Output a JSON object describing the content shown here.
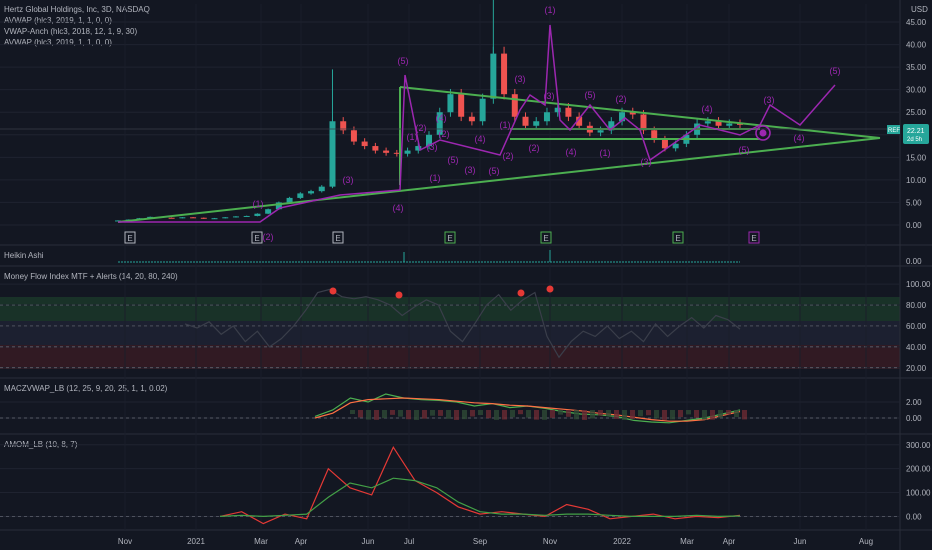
{
  "header": {
    "title": "Hertz Global Holdings, Inc, 3D, NASDAQ",
    "indicators": [
      "AVWAP (hlc3, 2019, 1, 1, 0, 0)",
      "VWAP-Anch (hlc3, 2018, 12, 1, 9, 30)",
      "AVWAP (hlc3, 2019, 1, 1, 0, 0)"
    ],
    "currency": "USD",
    "price_tag": "22.21",
    "price_sub": "2d 5h",
    "price_label_left": "REF"
  },
  "pane_titles": [
    "Heikin Ashi",
    "Money Flow Index MTF + Alerts (14, 20, 80, 240)",
    "MACZVWAP_LB (12, 25, 9, 20, 25, 1, 1, 0.02)",
    "AMOM_LB (10, 8, 7)"
  ],
  "x_axis_labels": [
    "Nov",
    "2021",
    "Mar",
    "Apr",
    "Jun",
    "Jul",
    "Sep",
    "Nov",
    "2022",
    "Mar",
    "Apr",
    "Jun",
    "Aug"
  ],
  "events": [
    "E",
    "E",
    "E",
    "E",
    "E",
    "E",
    "E"
  ],
  "wave_labels": [
    "(1)",
    "(2)",
    "(3)",
    "(4)",
    "(5)",
    "(1)",
    "(2)",
    "(1)",
    "(2)",
    "(3)",
    "(4)",
    "(5)",
    "(3)",
    "(1)",
    "(2)",
    "(3)",
    "(4)",
    "(5)",
    "(1)",
    "(2)",
    "(3)",
    "(4)",
    "(5)",
    "(3)",
    "(4)",
    "(5)",
    "(1)",
    "(2)",
    "(3)",
    "(4)",
    "(5)"
  ],
  "wave_target_icon": "target-circle-icon",
  "chart_data": [
    {
      "type": "line",
      "title": "Hertz Global Holdings, Inc, 3D, NASDAQ",
      "ylabel": "USD",
      "y_ticks": [
        "0.00",
        "5.00",
        "10.00",
        "15.00",
        "20.00",
        "25.00",
        "30.00",
        "35.00",
        "40.00",
        "45.00"
      ],
      "ylim": [
        -2,
        49
      ],
      "series": [
        {
          "values": [
            1.0,
            1.2,
            1.5,
            1.8,
            1.6,
            1.5,
            1.7,
            1.6,
            1.4,
            1.5,
            1.7,
            1.9,
            2.0,
            2.5,
            3.5,
            5.0,
            6.0,
            7.0,
            7.5,
            8.5,
            23.0,
            21.0,
            18.5,
            17.5,
            16.5,
            16.0,
            15.8,
            16.5,
            17.5,
            20.0,
            25.0,
            29.0,
            24.0,
            23.0,
            28.0,
            38.0,
            29.0,
            24.0,
            22.0,
            23.0,
            25.0,
            26.0,
            24.0,
            22.0,
            20.5,
            21.0,
            23.0,
            25.0,
            24.5,
            21.0,
            19.0,
            17.0,
            18.0,
            20.0,
            22.5,
            23.0,
            22.0,
            22.5,
            22.2
          ]
        }
      ]
    },
    {
      "type": "line",
      "title": "Money Flow Index MTF + Alerts (14, 20, 80, 240)",
      "y_ticks": [
        "20.00",
        "40.00",
        "60.00",
        "80.00",
        "100.00"
      ],
      "ylim": [
        15,
        103
      ],
      "series": [
        {
          "values": [
            62,
            58,
            64,
            52,
            60,
            45,
            55,
            40,
            48,
            60,
            75,
            92,
            95,
            88,
            86,
            88,
            85,
            80,
            70,
            78,
            85,
            80,
            55,
            45,
            62,
            80,
            90,
            75,
            85,
            92,
            50,
            30,
            45,
            55,
            50,
            60,
            48,
            55,
            45,
            62,
            50,
            60,
            68,
            58,
            70,
            66,
            57
          ]
        }
      ]
    },
    {
      "type": "line",
      "title": "MACZVWAP_LB (12, 25, 9, 20, 25, 1, 1, 0.02)",
      "y_ticks": [
        "0.00",
        "2.00"
      ],
      "ylim": [
        -1.5,
        3.5
      ],
      "series": [
        {
          "values": [
            0.2,
            1.0,
            2.5,
            2.0,
            3.0,
            2.5,
            2.3,
            2.2,
            2.0,
            1.5,
            1.8,
            1.3,
            1.5,
            1.2,
            0.8,
            0.5,
            0.4,
            0.2,
            -0.3,
            -0.5,
            -0.6,
            -0.3,
            0.0,
            0.5,
            1.0
          ]
        },
        {
          "values": [
            0.0,
            0.6,
            1.9,
            2.3,
            2.4,
            2.5,
            2.4,
            2.3,
            2.1,
            1.9,
            1.8,
            1.6,
            1.5,
            1.3,
            1.1,
            0.9,
            0.6,
            0.4,
            0.1,
            -0.2,
            -0.4,
            -0.4,
            -0.2,
            0.3,
            0.8
          ]
        }
      ]
    },
    {
      "type": "line",
      "title": "AMOM_LB (10, 8, 7)",
      "y_ticks": [
        "0.00",
        "100.00",
        "200.00",
        "300.00"
      ],
      "ylim": [
        -40,
        320
      ],
      "series": [
        {
          "values": [
            0,
            20,
            -30,
            10,
            -10,
            200,
            120,
            90,
            290,
            150,
            100,
            40,
            10,
            20,
            10,
            0,
            50,
            30,
            -10,
            0,
            10,
            -10,
            0,
            -5,
            5
          ]
        },
        {
          "values": [
            0,
            5,
            0,
            5,
            10,
            80,
            140,
            120,
            160,
            150,
            120,
            60,
            20,
            10,
            10,
            5,
            10,
            10,
            5,
            0,
            0,
            0,
            5,
            0,
            2
          ]
        }
      ]
    }
  ]
}
